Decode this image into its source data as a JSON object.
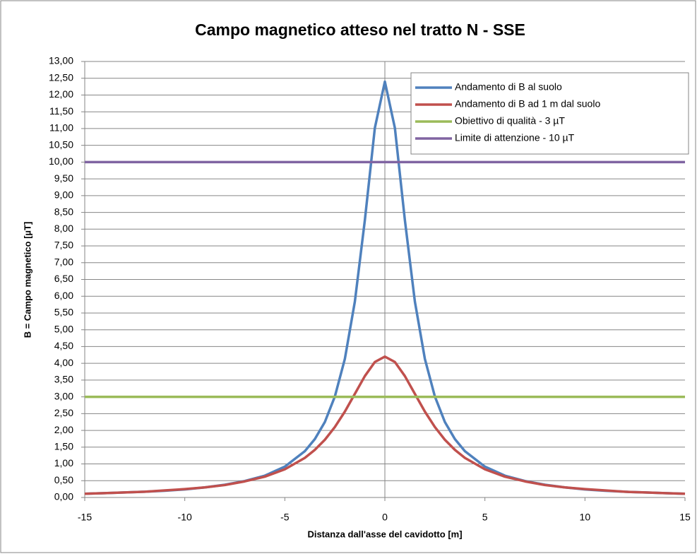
{
  "chart_data": {
    "type": "line",
    "title": "Campo magnetico atteso nel tratto  N - SSE",
    "x_label": "Distanza dall'asse del cavidotto [m]",
    "y_label": "B = Campo magnetico [µT]",
    "x": [
      -15,
      -14,
      -13,
      -12,
      -11,
      -10,
      -9,
      -8,
      -7,
      -6,
      -5,
      -4,
      -3.5,
      -3,
      -2.5,
      -2,
      -1.5,
      -1,
      -0.5,
      0,
      0.5,
      1,
      1.5,
      2,
      2.5,
      3,
      3.5,
      4,
      5,
      6,
      7,
      8,
      9,
      10,
      11,
      12,
      13,
      14,
      15
    ],
    "series": [
      {
        "name": "Andamento di B al suolo",
        "color": "#4f81bd",
        "values": [
          0.11,
          0.13,
          0.15,
          0.17,
          0.2,
          0.24,
          0.3,
          0.38,
          0.49,
          0.65,
          0.92,
          1.38,
          1.74,
          2.25,
          3.01,
          4.13,
          5.84,
          8.27,
          11.02,
          12.4,
          11.02,
          8.27,
          5.84,
          4.13,
          3.01,
          2.25,
          1.74,
          1.38,
          0.92,
          0.65,
          0.49,
          0.38,
          0.3,
          0.24,
          0.2,
          0.17,
          0.15,
          0.13,
          0.11
        ]
      },
      {
        "name": "Andamento di B ad 1 m dal suolo",
        "color": "#c0504d",
        "values": [
          0.11,
          0.13,
          0.15,
          0.17,
          0.21,
          0.25,
          0.3,
          0.37,
          0.48,
          0.62,
          0.84,
          1.18,
          1.42,
          1.72,
          2.1,
          2.56,
          3.09,
          3.62,
          4.04,
          4.2,
          4.04,
          3.62,
          3.09,
          2.56,
          2.1,
          1.72,
          1.42,
          1.18,
          0.84,
          0.62,
          0.48,
          0.37,
          0.3,
          0.25,
          0.21,
          0.17,
          0.15,
          0.13,
          0.11
        ]
      },
      {
        "name": "Obiettivo di qualità - 3 µT",
        "color": "#9bbb59",
        "x": [
          -15,
          15
        ],
        "values": [
          3,
          3
        ]
      },
      {
        "name": "Limite di attenzione - 10 µT",
        "color": "#8064a2",
        "x": [
          -15,
          15
        ],
        "values": [
          10,
          10
        ]
      }
    ],
    "xlim": [
      -15,
      15
    ],
    "xticks": [
      -15,
      -10,
      -5,
      0,
      5,
      10,
      15
    ],
    "ylim": [
      0,
      13
    ],
    "yticks": [
      {
        "value": 0,
        "label": "0,00"
      },
      {
        "value": 0.5,
        "label": "0,50"
      },
      {
        "value": 1,
        "label": "1,00"
      },
      {
        "value": 1.5,
        "label": "1,50"
      },
      {
        "value": 2,
        "label": "2,00"
      },
      {
        "value": 2.5,
        "label": "2,50"
      },
      {
        "value": 3,
        "label": "3,00"
      },
      {
        "value": 3.5,
        "label": "3,50"
      },
      {
        "value": 4,
        "label": "4,00"
      },
      {
        "value": 4.5,
        "label": "4,50"
      },
      {
        "value": 5,
        "label": "5,00"
      },
      {
        "value": 5.5,
        "label": "5,50"
      },
      {
        "value": 6,
        "label": "6,00"
      },
      {
        "value": 6.5,
        "label": "6,50"
      },
      {
        "value": 7,
        "label": "7,00"
      },
      {
        "value": 7.5,
        "label": "7,50"
      },
      {
        "value": 8,
        "label": "8,00"
      },
      {
        "value": 8.5,
        "label": "8,50"
      },
      {
        "value": 9,
        "label": "9,00"
      },
      {
        "value": 9.5,
        "label": "9,50"
      },
      {
        "value": 10,
        "label": "10,00"
      },
      {
        "value": 10.5,
        "label": "10,50"
      },
      {
        "value": 11,
        "label": "11,00"
      },
      {
        "value": 11.5,
        "label": "11,50"
      },
      {
        "value": 12,
        "label": "12,00"
      },
      {
        "value": 12.5,
        "label": "12,50"
      },
      {
        "value": 13,
        "label": "13,00"
      }
    ],
    "grid": true,
    "legend": "upper-right"
  }
}
